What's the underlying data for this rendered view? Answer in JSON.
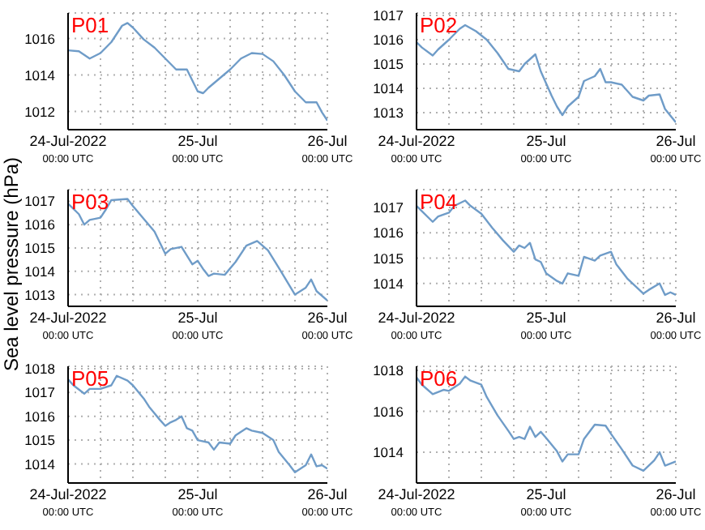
{
  "chart_data": [
    {
      "type": "line",
      "annotations": [
        "P01"
      ],
      "grid": true,
      "xlim": [
        "2022-07-24T00:00",
        "2022-07-26T00:00"
      ],
      "ylim": [
        1011,
        1017.4
      ],
      "yticks": [
        1012,
        1014,
        1016
      ],
      "xticks": [
        {
          "value": "2022-07-24T00:00",
          "label": "24-Jul-2022\n00:00 UTC"
        },
        {
          "value": "2022-07-24T06:00",
          "label": null
        },
        {
          "value": "2022-07-24T12:00",
          "label": null
        },
        {
          "value": "2022-07-24T18:00",
          "label": null
        },
        {
          "value": "2022-07-25T00:00",
          "label": "25-Jul\n00:00 UTC"
        },
        {
          "value": "2022-07-25T06:00",
          "label": null
        },
        {
          "value": "2022-07-25T12:00",
          "label": null
        },
        {
          "value": "2022-07-25T18:00",
          "label": null
        },
        {
          "value": "2022-07-26T00:00",
          "label": "26-Jul\n00:00 UTC"
        }
      ],
      "x": [
        "2022-07-24T00:00",
        "2022-07-24T02:00",
        "2022-07-24T04:00",
        "2022-07-24T06:00",
        "2022-07-24T08:00",
        "2022-07-24T10:00",
        "2022-07-24T11:00",
        "2022-07-24T12:00",
        "2022-07-24T14:00",
        "2022-07-24T16:00",
        "2022-07-24T18:00",
        "2022-07-24T20:00",
        "2022-07-24T22:00",
        "2022-07-24T23:00",
        "2022-07-25T00:00",
        "2022-07-25T01:00",
        "2022-07-25T02:00",
        "2022-07-25T04:00",
        "2022-07-25T06:00",
        "2022-07-25T08:00",
        "2022-07-25T10:00",
        "2022-07-25T12:00",
        "2022-07-25T14:00",
        "2022-07-25T16:00",
        "2022-07-25T18:00",
        "2022-07-25T20:00",
        "2022-07-25T22:00",
        "2022-07-25T23:00",
        "2022-07-26T00:00"
      ],
      "series": [
        {
          "color": "#6f9cc8",
          "values": [
            1015.35,
            1015.3,
            1014.9,
            1015.2,
            1015.8,
            1016.7,
            1016.85,
            1016.6,
            1015.95,
            1015.5,
            1014.9,
            1014.3,
            1014.3,
            1013.7,
            1013.1,
            1013.0,
            1013.3,
            1013.8,
            1014.3,
            1014.9,
            1015.2,
            1015.15,
            1014.75,
            1014.0,
            1013.1,
            1012.5,
            1012.5,
            1011.95,
            1011.5
          ]
        }
      ]
    },
    {
      "type": "line",
      "annotations": [
        "P02"
      ],
      "grid": true,
      "xlim": [
        "2022-07-24T00:00",
        "2022-07-26T00:00"
      ],
      "ylim": [
        1012.3,
        1017.1
      ],
      "yticks": [
        1013,
        1014,
        1015,
        1016,
        1017
      ],
      "xticks": [
        {
          "value": "2022-07-24T00:00",
          "label": "24-Jul-2022\n00:00 UTC"
        },
        {
          "value": "2022-07-24T06:00",
          "label": null
        },
        {
          "value": "2022-07-24T12:00",
          "label": null
        },
        {
          "value": "2022-07-24T18:00",
          "label": null
        },
        {
          "value": "2022-07-25T00:00",
          "label": "25-Jul\n00:00 UTC"
        },
        {
          "value": "2022-07-25T06:00",
          "label": null
        },
        {
          "value": "2022-07-25T12:00",
          "label": null
        },
        {
          "value": "2022-07-25T18:00",
          "label": null
        },
        {
          "value": "2022-07-26T00:00",
          "label": "26-Jul\n00:00 UTC"
        }
      ],
      "x": [
        "2022-07-24T00:00",
        "2022-07-24T01:00",
        "2022-07-24T03:00",
        "2022-07-24T04:00",
        "2022-07-24T06:00",
        "2022-07-24T08:00",
        "2022-07-24T09:00",
        "2022-07-24T11:00",
        "2022-07-24T13:00",
        "2022-07-24T15:00",
        "2022-07-24T17:00",
        "2022-07-24T19:00",
        "2022-07-24T20:00",
        "2022-07-24T22:00",
        "2022-07-24T23:00",
        "2022-07-25T01:00",
        "2022-07-25T02:00",
        "2022-07-25T03:00",
        "2022-07-25T04:00",
        "2022-07-25T06:00",
        "2022-07-25T07:00",
        "2022-07-25T09:00",
        "2022-07-25T10:00",
        "2022-07-25T11:00",
        "2022-07-25T12:00",
        "2022-07-25T14:00",
        "2022-07-25T16:00",
        "2022-07-25T18:00",
        "2022-07-25T19:00",
        "2022-07-25T21:00",
        "2022-07-25T22:00",
        "2022-07-26T00:00"
      ],
      "series": [
        {
          "color": "#6f9cc8",
          "values": [
            1015.9,
            1015.68,
            1015.35,
            1015.6,
            1016.0,
            1016.45,
            1016.6,
            1016.35,
            1016.0,
            1015.45,
            1014.8,
            1014.7,
            1015.0,
            1015.4,
            1014.7,
            1013.7,
            1013.25,
            1012.9,
            1013.25,
            1013.65,
            1014.3,
            1014.5,
            1014.8,
            1014.25,
            1014.25,
            1014.15,
            1013.65,
            1013.5,
            1013.7,
            1013.75,
            1013.15,
            1012.6
          ]
        }
      ]
    },
    {
      "type": "line",
      "annotations": [
        "P03"
      ],
      "ylabel": "Sea level pressure (hPa)",
      "grid": true,
      "xlim": [
        "2022-07-24T00:00",
        "2022-07-26T00:00"
      ],
      "ylim": [
        1012.5,
        1017.5
      ],
      "yticks": [
        1013,
        1014,
        1015,
        1016,
        1017
      ],
      "xticks": [
        {
          "value": "2022-07-24T00:00",
          "label": "24-Jul-2022\n00:00 UTC"
        },
        {
          "value": "2022-07-24T06:00",
          "label": null
        },
        {
          "value": "2022-07-24T12:00",
          "label": null
        },
        {
          "value": "2022-07-24T18:00",
          "label": null
        },
        {
          "value": "2022-07-25T00:00",
          "label": "25-Jul\n00:00 UTC"
        },
        {
          "value": "2022-07-25T06:00",
          "label": null
        },
        {
          "value": "2022-07-25T12:00",
          "label": null
        },
        {
          "value": "2022-07-25T18:00",
          "label": null
        },
        {
          "value": "2022-07-26T00:00",
          "label": "26-Jul\n00:00 UTC"
        }
      ],
      "x": [
        "2022-07-24T00:00",
        "2022-07-24T02:00",
        "2022-07-24T03:00",
        "2022-07-24T04:00",
        "2022-07-24T06:00",
        "2022-07-24T07:00",
        "2022-07-24T08:00",
        "2022-07-24T11:00",
        "2022-07-24T12:00",
        "2022-07-24T14:00",
        "2022-07-24T16:00",
        "2022-07-24T18:00",
        "2022-07-24T19:00",
        "2022-07-24T21:00",
        "2022-07-24T23:00",
        "2022-07-25T00:00",
        "2022-07-25T01:00",
        "2022-07-25T02:00",
        "2022-07-25T03:00",
        "2022-07-25T05:00",
        "2022-07-25T07:00",
        "2022-07-25T09:00",
        "2022-07-25T11:00",
        "2022-07-25T13:00",
        "2022-07-25T15:00",
        "2022-07-25T18:00",
        "2022-07-25T20:00",
        "2022-07-25T21:00",
        "2022-07-25T22:00",
        "2022-07-26T00:00"
      ],
      "series": [
        {
          "color": "#6f9cc8",
          "values": [
            1016.9,
            1016.45,
            1016.0,
            1016.2,
            1016.3,
            1016.65,
            1017.05,
            1017.1,
            1016.8,
            1016.25,
            1015.7,
            1014.75,
            1014.95,
            1015.05,
            1014.3,
            1014.45,
            1014.1,
            1013.8,
            1013.9,
            1013.85,
            1014.4,
            1015.1,
            1015.3,
            1014.9,
            1014.15,
            1013.0,
            1013.3,
            1013.65,
            1013.15,
            1012.75
          ]
        }
      ]
    },
    {
      "type": "line",
      "annotations": [
        "P04"
      ],
      "grid": true,
      "xlim": [
        "2022-07-24T00:00",
        "2022-07-26T00:00"
      ],
      "ylim": [
        1013.1,
        1017.7
      ],
      "yticks": [
        1014,
        1015,
        1016,
        1017
      ],
      "xticks": [
        {
          "value": "2022-07-24T00:00",
          "label": "24-Jul-2022\n00:00 UTC"
        },
        {
          "value": "2022-07-24T06:00",
          "label": null
        },
        {
          "value": "2022-07-24T12:00",
          "label": null
        },
        {
          "value": "2022-07-24T18:00",
          "label": null
        },
        {
          "value": "2022-07-25T00:00",
          "label": "25-Jul\n00:00 UTC"
        },
        {
          "value": "2022-07-25T06:00",
          "label": null
        },
        {
          "value": "2022-07-25T12:00",
          "label": null
        },
        {
          "value": "2022-07-25T18:00",
          "label": null
        },
        {
          "value": "2022-07-26T00:00",
          "label": "26-Jul\n00:00 UTC"
        }
      ],
      "x": [
        "2022-07-24T00:00",
        "2022-07-24T01:00",
        "2022-07-24T03:00",
        "2022-07-24T04:00",
        "2022-07-24T06:00",
        "2022-07-24T07:00",
        "2022-07-24T09:00",
        "2022-07-24T10:00",
        "2022-07-24T12:00",
        "2022-07-24T14:00",
        "2022-07-24T16:00",
        "2022-07-24T18:00",
        "2022-07-24T19:00",
        "2022-07-24T20:00",
        "2022-07-24T21:00",
        "2022-07-24T22:00",
        "2022-07-24T23:00",
        "2022-07-25T00:00",
        "2022-07-25T02:00",
        "2022-07-25T03:00",
        "2022-07-25T04:00",
        "2022-07-25T06:00",
        "2022-07-25T07:00",
        "2022-07-25T09:00",
        "2022-07-25T10:00",
        "2022-07-25T12:00",
        "2022-07-25T13:00",
        "2022-07-25T15:00",
        "2022-07-25T18:00",
        "2022-07-25T19:00",
        "2022-07-25T21:00",
        "2022-07-25T22:00",
        "2022-07-25T23:00",
        "2022-07-26T00:00"
      ],
      "series": [
        {
          "color": "#6f9cc8",
          "values": [
            1017.06,
            1016.85,
            1016.43,
            1016.64,
            1016.79,
            1017.06,
            1017.27,
            1017.06,
            1016.75,
            1016.2,
            1015.7,
            1015.25,
            1015.5,
            1015.4,
            1015.6,
            1014.95,
            1014.85,
            1014.4,
            1014.1,
            1014.0,
            1014.4,
            1014.3,
            1015.05,
            1014.9,
            1015.1,
            1015.25,
            1014.75,
            1014.2,
            1013.6,
            1013.75,
            1014.0,
            1013.55,
            1013.65,
            1013.55
          ]
        }
      ]
    },
    {
      "type": "line",
      "annotations": [
        "P05"
      ],
      "grid": true,
      "xlim": [
        "2022-07-24T00:00",
        "2022-07-26T00:00"
      ],
      "ylim": [
        1013.2,
        1018.1
      ],
      "yticks": [
        1014,
        1015,
        1016,
        1017,
        1018
      ],
      "xticks": [
        {
          "value": "2022-07-24T00:00",
          "label": "24-Jul-2022\n00:00 UTC"
        },
        {
          "value": "2022-07-24T06:00",
          "label": null
        },
        {
          "value": "2022-07-24T12:00",
          "label": null
        },
        {
          "value": "2022-07-24T18:00",
          "label": null
        },
        {
          "value": "2022-07-25T00:00",
          "label": "25-Jul\n00:00 UTC"
        },
        {
          "value": "2022-07-25T06:00",
          "label": null
        },
        {
          "value": "2022-07-25T12:00",
          "label": null
        },
        {
          "value": "2022-07-25T18:00",
          "label": null
        },
        {
          "value": "2022-07-26T00:00",
          "label": "26-Jul\n00:00 UTC"
        }
      ],
      "x": [
        "2022-07-24T00:00",
        "2022-07-24T01:00",
        "2022-07-24T03:00",
        "2022-07-24T04:00",
        "2022-07-24T06:00",
        "2022-07-24T08:00",
        "2022-07-24T09:00",
        "2022-07-24T11:00",
        "2022-07-24T12:00",
        "2022-07-24T14:00",
        "2022-07-24T15:00",
        "2022-07-24T17:00",
        "2022-07-24T18:00",
        "2022-07-24T19:00",
        "2022-07-24T20:00",
        "2022-07-24T21:00",
        "2022-07-24T22:00",
        "2022-07-24T23:00",
        "2022-07-25T00:00",
        "2022-07-25T02:00",
        "2022-07-25T03:00",
        "2022-07-25T04:00",
        "2022-07-25T06:00",
        "2022-07-25T07:00",
        "2022-07-25T09:00",
        "2022-07-25T10:00",
        "2022-07-25T12:00",
        "2022-07-25T14:00",
        "2022-07-25T15:00",
        "2022-07-25T17:00",
        "2022-07-25T18:00",
        "2022-07-25T20:00",
        "2022-07-25T21:00",
        "2022-07-25T22:00",
        "2022-07-25T23:00",
        "2022-07-26T00:00"
      ],
      "series": [
        {
          "color": "#6f9cc8",
          "values": [
            1017.55,
            1017.3,
            1016.95,
            1017.15,
            1017.15,
            1017.3,
            1017.7,
            1017.5,
            1017.3,
            1016.75,
            1016.4,
            1015.85,
            1015.6,
            1015.75,
            1015.85,
            1016.0,
            1015.5,
            1015.4,
            1015.0,
            1014.9,
            1014.6,
            1014.9,
            1014.85,
            1015.2,
            1015.5,
            1015.4,
            1015.3,
            1015.0,
            1014.5,
            1013.95,
            1013.65,
            1013.95,
            1014.4,
            1013.9,
            1013.95,
            1013.8
          ]
        }
      ]
    },
    {
      "type": "line",
      "annotations": [
        "P06"
      ],
      "grid": true,
      "xlim": [
        "2022-07-24T00:00",
        "2022-07-26T00:00"
      ],
      "ylim": [
        1012.5,
        1018.2
      ],
      "yticks": [
        1014,
        1016,
        1018
      ],
      "xticks": [
        {
          "value": "2022-07-24T00:00",
          "label": "24-Jul-2022\n00:00 UTC"
        },
        {
          "value": "2022-07-24T06:00",
          "label": null
        },
        {
          "value": "2022-07-24T12:00",
          "label": null
        },
        {
          "value": "2022-07-24T18:00",
          "label": null
        },
        {
          "value": "2022-07-25T00:00",
          "label": "25-Jul\n00:00 UTC"
        },
        {
          "value": "2022-07-25T06:00",
          "label": null
        },
        {
          "value": "2022-07-25T12:00",
          "label": null
        },
        {
          "value": "2022-07-25T18:00",
          "label": null
        },
        {
          "value": "2022-07-26T00:00",
          "label": "26-Jul\n00:00 UTC"
        }
      ],
      "x": [
        "2022-07-24T00:00",
        "2022-07-24T01:00",
        "2022-07-24T03:00",
        "2022-07-24T05:00",
        "2022-07-24T06:00",
        "2022-07-24T08:00",
        "2022-07-24T09:00",
        "2022-07-24T10:00",
        "2022-07-24T12:00",
        "2022-07-24T13:00",
        "2022-07-24T15:00",
        "2022-07-24T17:00",
        "2022-07-24T18:00",
        "2022-07-24T19:00",
        "2022-07-24T20:00",
        "2022-07-24T21:00",
        "2022-07-24T22:00",
        "2022-07-24T23:00",
        "2022-07-25T00:00",
        "2022-07-25T02:00",
        "2022-07-25T03:00",
        "2022-07-25T04:00",
        "2022-07-25T06:00",
        "2022-07-25T07:00",
        "2022-07-25T09:00",
        "2022-07-25T11:00",
        "2022-07-25T12:00",
        "2022-07-25T14:00",
        "2022-07-25T16:00",
        "2022-07-25T18:00",
        "2022-07-25T20:00",
        "2022-07-25T21:00",
        "2022-07-25T22:00",
        "2022-07-26T00:00"
      ],
      "series": [
        {
          "color": "#6f9cc8",
          "values": [
            1017.66,
            1017.3,
            1016.84,
            1017.05,
            1017.0,
            1017.35,
            1017.7,
            1017.5,
            1017.3,
            1016.7,
            1015.8,
            1015.05,
            1014.65,
            1014.75,
            1014.65,
            1015.25,
            1014.75,
            1015.0,
            1014.7,
            1014.05,
            1013.55,
            1013.9,
            1013.9,
            1014.65,
            1015.35,
            1015.3,
            1014.9,
            1014.15,
            1013.35,
            1013.1,
            1013.6,
            1014.0,
            1013.35,
            1013.55
          ]
        }
      ]
    }
  ]
}
